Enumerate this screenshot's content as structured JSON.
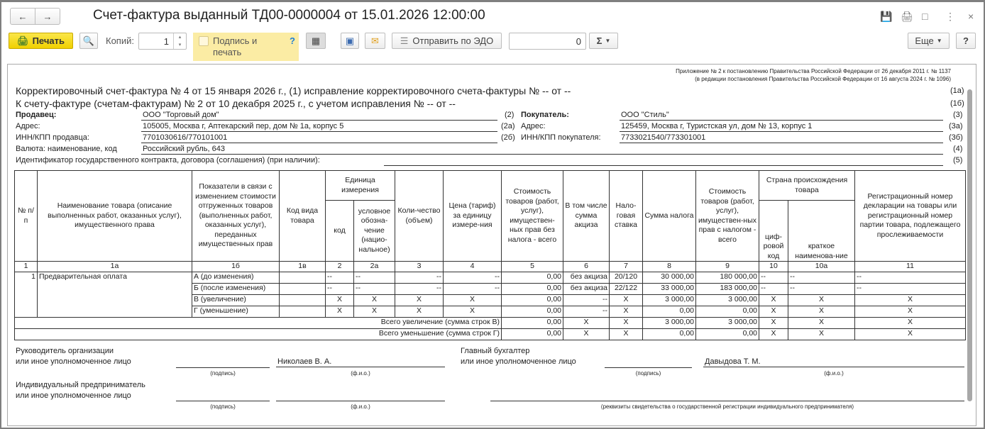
{
  "window": {
    "title": "Счет-фактура выданный ТД00-0000004 от 15.01.2026 12:00:00"
  },
  "toolbar": {
    "print": "Печать",
    "copies_label": "Копий:",
    "copies_value": "1",
    "sign_print": "Подпись и печать",
    "help_q": "?",
    "send_edo": "Отправить по ЭДО",
    "sum_value": "0",
    "sum_icon": "Σ",
    "more": "Еще",
    "help": "?"
  },
  "doc": {
    "appendix1": "Приложение № 2 к постановлению Правительства Российской Федерации от 26 декабря 2011 г. № 1137",
    "appendix2": "(в редакции постановления Правительства Российской Федерации от 16 августа 2024 г. № 1096)",
    "line1": "Корректировочный счет-фактура № 4 от 15 января 2026 г., (1) исправление корректировочного счета-фактуры № -- от --",
    "line1_code": "(1а)",
    "line2": "К счету-фактуре (счетам-фактурам) № 2 от 10 декабря 2025 г., с учетом исправления № -- от --",
    "line2_code": "(1б)",
    "seller_label": "Продавец:",
    "seller": "ООО \"Торговый дом\"",
    "seller_code": "(2)",
    "seller_addr_label": "Адрес:",
    "seller_addr": "105005, Москва г, Аптекарский пер, дом № 1а, корпус 5",
    "seller_addr_code": "(2а)",
    "seller_inn_label": "ИНН/КПП продавца:",
    "seller_inn": "7701030616/770101001",
    "seller_inn_code": "(2б)",
    "buyer_label": "Покупатель:",
    "buyer": "ООО \"Стиль\"",
    "buyer_code": "(3)",
    "buyer_addr_label": "Адрес:",
    "buyer_addr": "125459, Москва г, Туристская ул, дом № 13, корпус 1",
    "buyer_addr_code": "(3а)",
    "buyer_inn_label": "ИНН/КПП покупателя:",
    "buyer_inn": "7733021540/773301001",
    "buyer_inn_code": "(3б)",
    "currency_label": "Валюта: наименование, код",
    "currency": "Российский рубль, 643",
    "currency_code": "(4)",
    "contract_label": "Идентификатор государственного контракта, договора (соглашения) (при наличии):",
    "contract_code": "(5)"
  },
  "table": {
    "h": {
      "num": "№ п/п",
      "name": "Наименование товара (описание выполненных работ, оказанных услуг), имущественного права",
      "ind": "Показатели в связи с изменением стоимости отгруженных товаров (выполненных работ, оказанных услуг), переданных имущественных прав",
      "kind": "Код вида товара",
      "unit": "Единица измерения",
      "unit_code": "код",
      "unit_name": "условное обозна-чение (нацио-нальное)",
      "qty": "Коли-чество (объем)",
      "price": "Цена (тариф) за единицу измере-ния",
      "cost": "Стоимость товаров (работ, услуг), имуществен-ных прав без налога - всего",
      "excise": "В том числе сумма акциза",
      "rate": "Нало-говая ставка",
      "tax": "Сумма налога",
      "total": "Стоимость товаров (работ, услуг), имуществен-ных прав с налогом - всего",
      "country": "Страна происхождения товара",
      "country_code": "циф-ровой код",
      "country_name": "краткое наименова-ние",
      "reg": "Регистрационный номер декларации на товары или регистрационный номер партии товара, подлежащего прослеживаемости"
    },
    "colnums": [
      "1",
      "1а",
      "1б",
      "1в",
      "2",
      "2а",
      "3",
      "4",
      "5",
      "6",
      "7",
      "8",
      "9",
      "10",
      "10а",
      "11"
    ],
    "item_num": "1",
    "item_name": "Предварительная оплата",
    "rows": [
      [
        "А (до изменения)",
        "",
        "--",
        "--",
        "--",
        "--",
        "0,00",
        "без акциза",
        "20/120",
        "30 000,00",
        "180 000,00",
        "--",
        "--",
        "--"
      ],
      [
        "Б (после изменения)",
        "",
        "--",
        "--",
        "--",
        "--",
        "0,00",
        "без акциза",
        "22/122",
        "33 000,00",
        "183 000,00",
        "--",
        "--",
        "--"
      ],
      [
        "В (увеличение)",
        "",
        "Х",
        "Х",
        "Х",
        "Х",
        "0,00",
        "--",
        "Х",
        "3 000,00",
        "3 000,00",
        "Х",
        "Х",
        "Х"
      ],
      [
        "Г (уменьшение)",
        "",
        "Х",
        "Х",
        "Х",
        "Х",
        "0,00",
        "--",
        "Х",
        "0,00",
        "0,00",
        "Х",
        "Х",
        "Х"
      ]
    ],
    "totals": [
      [
        "Всего увеличение (сумма строк В)",
        "0,00",
        "Х",
        "Х",
        "3 000,00",
        "3 000,00",
        "Х",
        "Х",
        "Х"
      ],
      [
        "Всего уменьшение (сумма строк Г)",
        "0,00",
        "Х",
        "Х",
        "0,00",
        "0,00",
        "Х",
        "Х",
        "Х"
      ]
    ]
  },
  "sign": {
    "head1": "Руководитель организации",
    "head2": "или иное уполномоченное лицо",
    "head_name": "Николаев В. А.",
    "acc1": "Главный бухгалтер",
    "acc2": "или иное уполномоченное лицо",
    "acc_name": "Давыдова Т. М.",
    "ip1": "Индивидуальный предприниматель",
    "ip2": "или иное уполномоченное лицо",
    "podpis": "(подпись)",
    "fio": "(ф.и.о.)",
    "ip_req": "(реквизиты свидетельства о государственной регистрации индивидуального предпринимателя)"
  }
}
